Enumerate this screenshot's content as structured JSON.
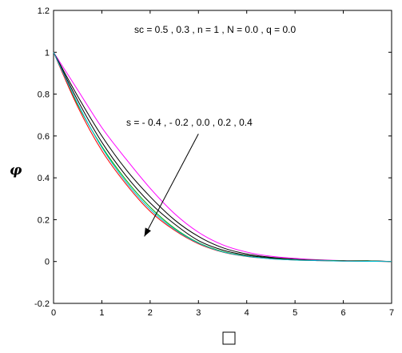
{
  "chart_data": {
    "type": "line",
    "ylabel": "φ",
    "xlabel": "□",
    "xlim": [
      0,
      7
    ],
    "ylim": [
      -0.2,
      1.2
    ],
    "xticks": [
      0,
      1,
      2,
      3,
      4,
      5,
      6,
      7
    ],
    "yticks": [
      -0.2,
      0,
      0.2,
      0.4,
      0.6,
      0.8,
      1,
      1.2
    ],
    "ytick_labels": [
      "-0.2",
      "0",
      "0.2",
      "0.4",
      "0.6",
      "0.8",
      "1",
      "1.2"
    ],
    "grid": false,
    "annotations": [
      {
        "text": "sc = 0.5 , 0.3 , n = 1 , N = 0.0 , q = 0.0"
      },
      {
        "text": "s = - 0.4 , - 0.2 , 0.0 , 0.2 , 0.4",
        "arrow_from": [
          3.0,
          0.61
        ],
        "arrow_to": [
          1.88,
          0.12
        ]
      }
    ],
    "series": [
      {
        "color": "#ff00ff",
        "x": [
          0,
          0.5,
          1,
          1.5,
          2,
          2.5,
          3,
          3.5,
          4,
          4.5,
          5,
          5.5,
          6,
          6.5,
          7
        ],
        "y": [
          1.0,
          0.82,
          0.64,
          0.49,
          0.35,
          0.23,
          0.14,
          0.08,
          0.045,
          0.025,
          0.015,
          0.008,
          0.004,
          0.002,
          0.0
        ]
      },
      {
        "color": "#000000",
        "x": [
          0,
          0.5,
          1,
          1.5,
          2,
          2.5,
          3,
          3.5,
          4,
          4.5,
          5,
          5.5,
          6,
          6.5,
          7
        ],
        "y": [
          1.0,
          0.79,
          0.6,
          0.44,
          0.31,
          0.2,
          0.12,
          0.066,
          0.036,
          0.02,
          0.011,
          0.006,
          0.004,
          0.003,
          0.0
        ]
      },
      {
        "color": "#000000",
        "x": [
          0,
          0.5,
          1,
          1.5,
          2,
          2.5,
          3,
          3.5,
          4,
          4.5,
          5,
          5.5,
          6,
          6.5,
          7
        ],
        "y": [
          1.0,
          0.77,
          0.57,
          0.41,
          0.28,
          0.18,
          0.1,
          0.055,
          0.03,
          0.017,
          0.009,
          0.005,
          0.003,
          0.003,
          0.0
        ]
      },
      {
        "color": "#00aa00",
        "x": [
          0,
          0.5,
          1,
          1.5,
          2,
          2.5,
          3,
          3.5,
          4,
          4.5,
          5,
          5.5,
          6,
          6.5,
          7
        ],
        "y": [
          1.0,
          0.75,
          0.55,
          0.39,
          0.26,
          0.16,
          0.09,
          0.048,
          0.026,
          0.014,
          0.008,
          0.005,
          0.003,
          0.002,
          0.0
        ]
      },
      {
        "color": "#ff0000",
        "x": [
          0,
          0.5,
          1,
          1.5,
          2,
          2.5,
          3,
          3.5,
          4,
          4.5,
          5,
          5.5,
          6,
          6.5,
          7
        ],
        "y": [
          1.0,
          0.74,
          0.53,
          0.37,
          0.24,
          0.15,
          0.085,
          0.045,
          0.024,
          0.013,
          0.007,
          0.004,
          0.002,
          0.001,
          0.0
        ]
      },
      {
        "color": "#00bcd4",
        "x": [
          0,
          0.5,
          1,
          1.5,
          2,
          2.5,
          3,
          3.5,
          4,
          4.5,
          5,
          5.5,
          6,
          6.5,
          7
        ],
        "y": [
          1.0,
          0.755,
          0.545,
          0.38,
          0.25,
          0.155,
          0.088,
          0.046,
          0.025,
          0.013,
          0.007,
          0.004,
          0.002,
          0.001,
          0.0
        ]
      }
    ]
  }
}
